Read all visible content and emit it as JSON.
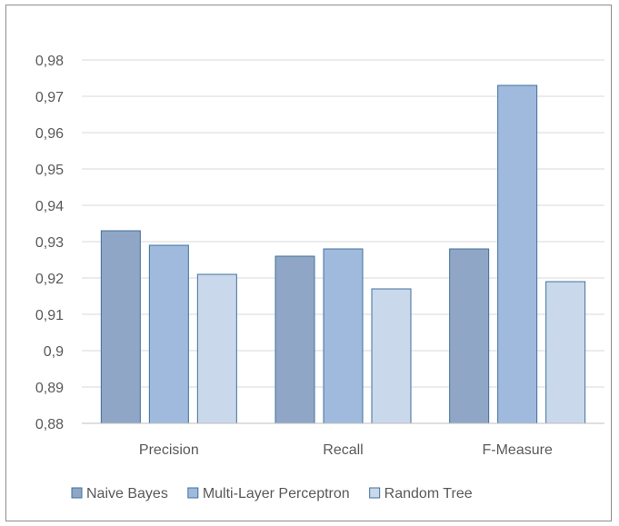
{
  "chart_data": {
    "type": "bar",
    "categories": [
      "Precision",
      "Recall",
      "F-Measure"
    ],
    "series": [
      {
        "name": "Naive Bayes",
        "values": [
          0.933,
          0.926,
          0.928
        ],
        "color": "#8fa6c6"
      },
      {
        "name": "Multi-Layer Perceptron",
        "values": [
          0.929,
          0.928,
          0.973
        ],
        "color": "#9fbadd"
      },
      {
        "name": "Random Tree",
        "values": [
          0.921,
          0.917,
          0.919
        ],
        "color": "#cad8ec"
      }
    ],
    "ylim": [
      0.88,
      0.98
    ],
    "yticks": [
      0.88,
      0.89,
      0.9,
      0.91,
      0.92,
      0.93,
      0.94,
      0.95,
      0.96,
      0.97,
      0.98
    ],
    "ytick_labels": [
      "0,88",
      "0,89",
      "0,9",
      "0,91",
      "0,92",
      "0,93",
      "0,94",
      "0,95",
      "0,96",
      "0,97",
      "0,98"
    ],
    "grid": true,
    "legend_position": "bottom"
  }
}
